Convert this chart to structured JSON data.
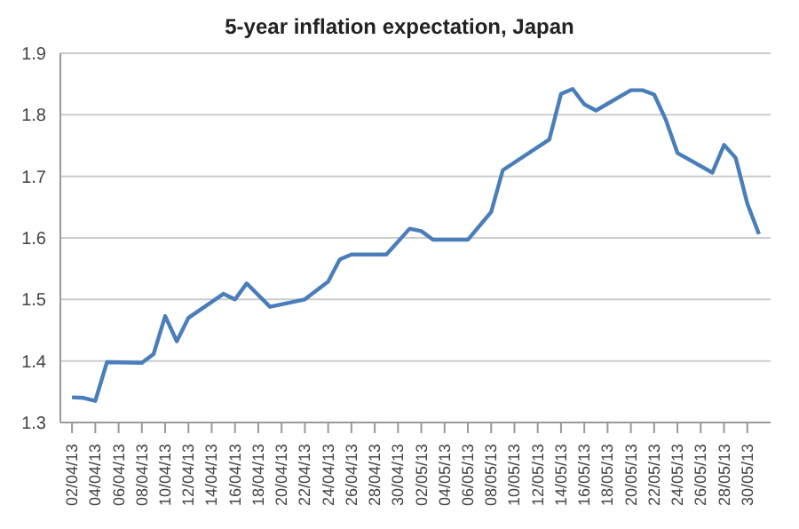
{
  "chart_data": {
    "type": "line",
    "title": "5-year inflation expectation, Japan",
    "grid": "y",
    "marker": "none",
    "line_style": "solid",
    "x": [
      "--04-02",
      "--04-03",
      "--04-04",
      "--04-05",
      "--04-08",
      "--04-09",
      "--04-10",
      "--04-11",
      "--04-12",
      "--04-15",
      "--04-16",
      "--04-17",
      "--04-19",
      "--04-22",
      "--04-24",
      "--04-25",
      "--04-26",
      "--04-29",
      "--05-01",
      "--05-02",
      "--05-03",
      "--05-06",
      "--05-08",
      "--05-09",
      "--05-13",
      "--05-14",
      "--05-15",
      "--05-16",
      "--05-17",
      "--05-20",
      "--05-21",
      "--05-22",
      "--05-23",
      "--05-24",
      "--05-27",
      "--05-28",
      "--05-29",
      "--05-30",
      "--05-31"
    ],
    "series": [
      {
        "color": "#4a7ebb",
        "values": [
          1.341,
          1.34,
          1.335,
          1.398,
          1.397,
          1.411,
          1.473,
          1.432,
          1.47,
          1.509,
          1.5,
          1.526,
          1.488,
          1.5,
          1.529,
          1.565,
          1.573,
          1.573,
          1.615,
          1.611,
          1.597,
          1.597,
          1.642,
          1.71,
          1.76,
          1.834,
          1.842,
          1.817,
          1.807,
          1.84,
          1.84,
          1.833,
          1.792,
          1.738,
          1.706,
          1.751,
          1.73,
          1.656,
          1.606
        ]
      }
    ],
    "xlim": [
      "--04-01",
      "--06-01"
    ],
    "xticks": [
      {
        "value": "--04-02",
        "label": "02/04/13"
      },
      {
        "value": "--04-04",
        "label": "04/04/13"
      },
      {
        "value": "--04-06",
        "label": "06/04/13"
      },
      {
        "value": "--04-08",
        "label": "08/04/13"
      },
      {
        "value": "--04-10",
        "label": "10/04/13"
      },
      {
        "value": "--04-12",
        "label": "12/04/13"
      },
      {
        "value": "--04-14",
        "label": "14/04/13"
      },
      {
        "value": "--04-16",
        "label": "16/04/13"
      },
      {
        "value": "--04-18",
        "label": "18/04/13"
      },
      {
        "value": "--04-20",
        "label": "20/04/13"
      },
      {
        "value": "--04-22",
        "label": "22/04/13"
      },
      {
        "value": "--04-24",
        "label": "24/04/13"
      },
      {
        "value": "--04-26",
        "label": "26/04/13"
      },
      {
        "value": "--04-28",
        "label": "28/04/13"
      },
      {
        "value": "--04-30",
        "label": "30/04/13"
      },
      {
        "value": "--05-02",
        "label": "02/05/13"
      },
      {
        "value": "--05-04",
        "label": "04/05/13"
      },
      {
        "value": "--05-06",
        "label": "06/05/13"
      },
      {
        "value": "--05-08",
        "label": "08/05/13"
      },
      {
        "value": "--05-10",
        "label": "10/05/13"
      },
      {
        "value": "--05-12",
        "label": "12/05/13"
      },
      {
        "value": "--05-14",
        "label": "14/05/13"
      },
      {
        "value": "--05-16",
        "label": "16/05/13"
      },
      {
        "value": "--05-18",
        "label": "18/05/13"
      },
      {
        "value": "--05-20",
        "label": "20/05/13"
      },
      {
        "value": "--05-22",
        "label": "22/05/13"
      },
      {
        "value": "--05-24",
        "label": "24/05/13"
      },
      {
        "value": "--05-26",
        "label": "26/05/13"
      },
      {
        "value": "--05-28",
        "label": "28/05/13"
      },
      {
        "value": "--05-30",
        "label": "30/05/13"
      }
    ],
    "ylim": [
      1.3,
      1.9
    ],
    "yticks": [
      1.3,
      1.4,
      1.5,
      1.6,
      1.7,
      1.8,
      1.9
    ]
  }
}
